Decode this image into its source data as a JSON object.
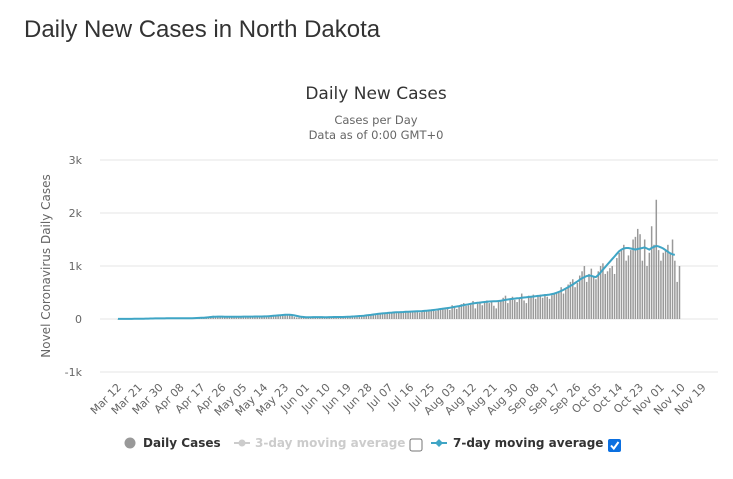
{
  "page": {
    "title": "Daily New Cases in North Dakota"
  },
  "legend": {
    "items": [
      {
        "label": "Daily Cases",
        "color": "#999999",
        "active": true,
        "checkbox": null
      },
      {
        "label": "3-day moving average",
        "color": "#cccccc",
        "active": false,
        "checkbox": false
      },
      {
        "label": "7-day moving average",
        "color": "#3fa5c5",
        "active": true,
        "checkbox": true
      }
    ]
  },
  "chart_data": {
    "type": "bar",
    "title": "Daily New Cases",
    "subtitle_lines": [
      "Cases per Day",
      "Data as of 0:00 GMT+0"
    ],
    "xlabel": "",
    "ylabel": "Novel Coronavirus Daily Cases",
    "ylim": [
      -1000,
      3000
    ],
    "y_ticks": [
      {
        "value": 3000,
        "label": "3k"
      },
      {
        "value": 2000,
        "label": "2k"
      },
      {
        "value": 1000,
        "label": "1k"
      },
      {
        "value": 0,
        "label": "0"
      },
      {
        "value": -1000,
        "label": "-1k"
      }
    ],
    "x_start": "Mar 12",
    "x_tick_labels": [
      "Mar 12",
      "Mar 21",
      "Mar 30",
      "Apr 08",
      "Apr 17",
      "Apr 26",
      "May 05",
      "May 14",
      "May 23",
      "Jun 01",
      "Jun 10",
      "Jun 19",
      "Jun 28",
      "Jul 07",
      "Jul 16",
      "Jul 25",
      "Aug 03",
      "Aug 12",
      "Aug 21",
      "Aug 30",
      "Sep 08",
      "Sep 17",
      "Sep 26",
      "Oct 05",
      "Oct 14",
      "Oct 23",
      "Nov 01",
      "Nov 10",
      "Nov 19"
    ],
    "x_tick_interval_days": 9,
    "grid": true,
    "legend_position": "bottom",
    "series": [
      {
        "name": "Daily Cases",
        "type": "bar",
        "color": "#999999",
        "values": [
          1,
          0,
          1,
          1,
          2,
          3,
          2,
          4,
          5,
          6,
          8,
          6,
          9,
          10,
          12,
          14,
          11,
          15,
          13,
          10,
          12,
          14,
          16,
          12,
          10,
          13,
          15,
          11,
          14,
          12,
          16,
          18,
          15,
          20,
          22,
          25,
          18,
          30,
          28,
          26,
          35,
          60,
          55,
          45,
          40,
          50,
          42,
          38,
          35,
          44,
          40,
          36,
          50,
          48,
          42,
          45,
          40,
          38,
          46,
          52,
          48,
          44,
          40,
          50,
          55,
          60,
          58,
          62,
          70,
          80,
          75,
          90,
          85,
          78,
          70,
          60,
          40,
          30,
          28,
          35,
          30,
          32,
          36,
          40,
          38,
          34,
          42,
          30,
          28,
          33,
          38,
          36,
          40,
          44,
          35,
          30,
          42,
          38,
          36,
          40,
          45,
          50,
          55,
          48,
          60,
          58,
          62,
          70,
          75,
          80,
          85,
          90,
          95,
          100,
          110,
          105,
          120,
          115,
          125,
          130,
          110,
          120,
          135,
          140,
          130,
          125,
          150,
          145,
          140,
          160,
          120,
          150,
          165,
          170,
          160,
          180,
          175,
          150,
          190,
          200,
          210,
          180,
          220,
          170,
          260,
          240,
          190,
          230,
          280,
          300,
          250,
          260,
          300,
          340,
          200,
          290,
          330,
          260,
          310,
          350,
          300,
          340,
          250,
          200,
          320,
          360,
          400,
          440,
          300,
          380,
          420,
          360,
          320,
          400,
          480,
          350,
          300,
          440,
          420,
          460,
          380,
          430,
          460,
          400,
          470,
          420,
          380,
          450,
          480,
          500,
          520,
          600,
          480,
          560,
          650,
          700,
          750,
          600,
          680,
          820,
          900,
          1000,
          700,
          850,
          950,
          800,
          750,
          900,
          1000,
          1050,
          850,
          900,
          960,
          1000,
          850,
          1150,
          1250,
          1300,
          1400,
          1100,
          1200,
          1300,
          1500,
          1550,
          1700,
          1600,
          1100,
          1500,
          1000,
          1250,
          1750,
          1400,
          2250,
          1300,
          1100,
          1250,
          1300,
          1400,
          1250,
          1500,
          1100,
          700,
          1000
        ]
      },
      {
        "name": "7-day moving average",
        "type": "line",
        "color": "#3fa5c5",
        "values": [
          1,
          1,
          1,
          1,
          1,
          2,
          2,
          3,
          3,
          4,
          5,
          6,
          7,
          8,
          9,
          10,
          11,
          12,
          12,
          12,
          12,
          13,
          13,
          13,
          13,
          13,
          13,
          13,
          13,
          13,
          14,
          15,
          16,
          17,
          19,
          21,
          23,
          25,
          28,
          32,
          38,
          42,
          44,
          46,
          46,
          45,
          44,
          43,
          42,
          42,
          42,
          42,
          43,
          44,
          45,
          46,
          46,
          46,
          46,
          47,
          48,
          48,
          48,
          49,
          50,
          53,
          56,
          60,
          64,
          68,
          72,
          76,
          79,
          80,
          79,
          75,
          68,
          58,
          50,
          42,
          38,
          34,
          33,
          34,
          35,
          35,
          36,
          36,
          35,
          34,
          34,
          35,
          36,
          37,
          37,
          37,
          37,
          38,
          39,
          41,
          44,
          47,
          50,
          53,
          56,
          59,
          63,
          68,
          73,
          78,
          84,
          90,
          96,
          101,
          106,
          110,
          114,
          118,
          121,
          124,
          126,
          128,
          131,
          133,
          135,
          137,
          139,
          141,
          143,
          145,
          147,
          150,
          153,
          157,
          161,
          165,
          170,
          176,
          182,
          188,
          195,
          200,
          205,
          212,
          220,
          228,
          236,
          244,
          252,
          262,
          270,
          278,
          286,
          294,
          300,
          305,
          310,
          315,
          320,
          326,
          330,
          332,
          334,
          336,
          340,
          345,
          352,
          360,
          368,
          375,
          380,
          385,
          390,
          395,
          400,
          405,
          410,
          415,
          420,
          425,
          430,
          435,
          440,
          445,
          450,
          455,
          460,
          470,
          480,
          495,
          510,
          530,
          550,
          575,
          600,
          625,
          650,
          680,
          710,
          740,
          770,
          790,
          810,
          820,
          815,
          800,
          790,
          830,
          880,
          930,
          980,
          1030,
          1080,
          1130,
          1180,
          1230,
          1280,
          1310,
          1330,
          1340,
          1340,
          1330,
          1320,
          1310,
          1320,
          1330,
          1340,
          1350,
          1330,
          1310,
          1340,
          1360,
          1380,
          1370,
          1350,
          1330,
          1300,
          1270,
          1240,
          1220,
          1210
        ]
      }
    ]
  }
}
